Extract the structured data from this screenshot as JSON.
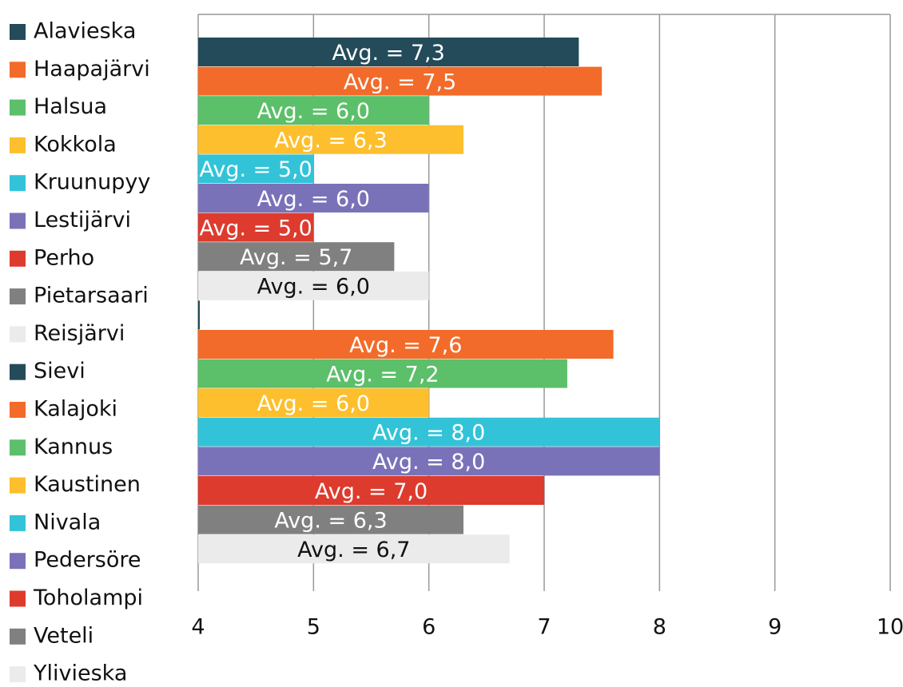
{
  "chart_data": {
    "type": "barh",
    "categories": [
      "Alavieska",
      "Haapajärvi",
      "Halsua",
      "Kokkola",
      "Kruunupyy",
      "Lestijärvi",
      "Perho",
      "Pietarsaari",
      "Reisjärvi",
      "Sievi",
      "Kalajoki",
      "Kannus",
      "Kaustinen",
      "Nivala",
      "Pedersöre",
      "Toholampi",
      "Veteli",
      "Ylivieska"
    ],
    "values": [
      7.3,
      7.5,
      6.0,
      6.3,
      5.0,
      6.0,
      5.0,
      5.7,
      6.0,
      4.0,
      7.6,
      7.2,
      6.0,
      8.0,
      8.0,
      7.0,
      6.3,
      6.7
    ],
    "value_labels": [
      "Avg. = 7,3",
      "Avg. = 7,5",
      "Avg. = 6,0",
      "Avg. = 6,3",
      "Avg. = 5,0",
      "Avg. = 6,0",
      "Avg. = 5,0",
      "Avg. = 5,7",
      "Avg. = 6,0",
      null,
      "Avg. = 7,6",
      "Avg. = 7,2",
      "Avg. = 6,0",
      "Avg. = 8,0",
      "Avg. = 8,0",
      "Avg. = 7,0",
      "Avg. = 6,3",
      "Avg. = 6,7"
    ],
    "colors": [
      "#234b5a",
      "#f26b2a",
      "#5cbf6a",
      "#fdbf2d",
      "#33c3d8",
      "#7a72b8",
      "#dd3b2e",
      "#808080",
      "#ebebeb",
      "#234b5a",
      "#f26b2a",
      "#5cbf6a",
      "#fdbf2d",
      "#33c3d8",
      "#7a72b8",
      "#dd3b2e",
      "#808080",
      "#ebebeb"
    ],
    "xlim": [
      4,
      10
    ],
    "xticks": [
      4,
      5,
      6,
      7,
      8,
      9,
      10
    ],
    "grid": true,
    "legend": "left"
  }
}
